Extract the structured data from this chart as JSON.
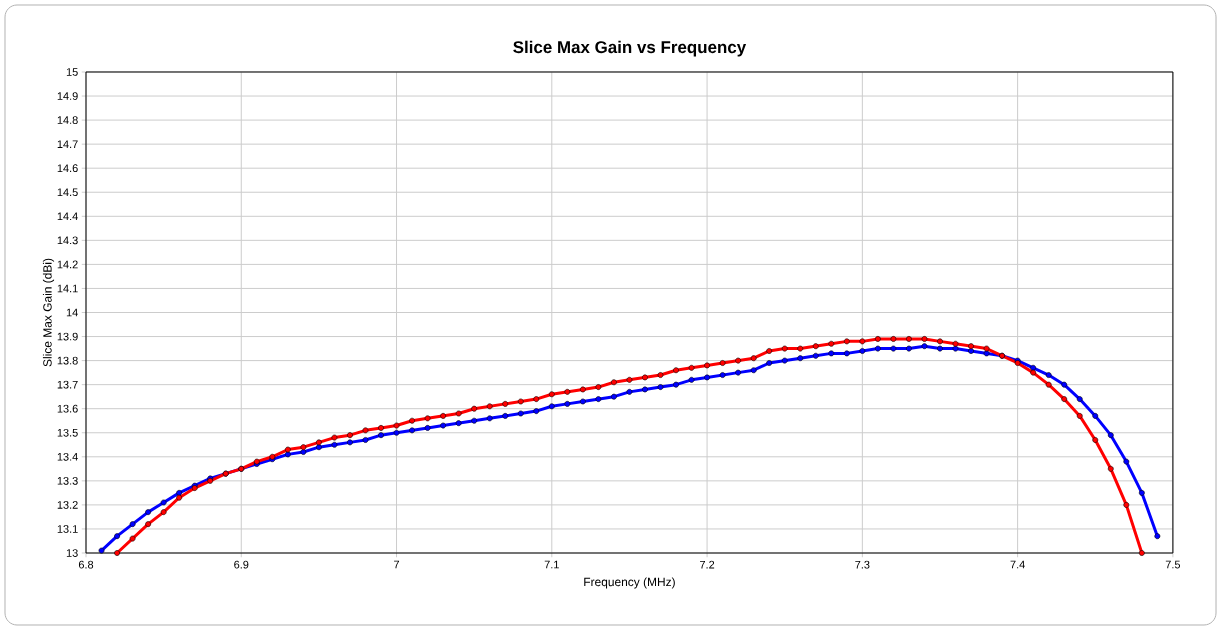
{
  "chart_data": {
    "type": "line",
    "title": "Slice Max Gain  vs  Frequency",
    "xlabel": "Frequency (MHz)",
    "ylabel": "Slice Max Gain (dBi)",
    "xlim": [
      6.8,
      7.5
    ],
    "xticks": [
      6.8,
      6.9,
      7,
      7.1,
      7.2,
      7.3,
      7.4,
      7.5
    ],
    "ylim": [
      13,
      15
    ],
    "yticks": [
      13,
      13.1,
      13.2,
      13.3,
      13.4,
      13.5,
      13.6,
      13.7,
      13.8,
      13.9,
      14,
      14.1,
      14.2,
      14.3,
      14.4,
      14.5,
      14.6,
      14.7,
      14.8,
      14.9,
      15
    ],
    "grid": true,
    "marker": "circle",
    "line_style": "solid",
    "series": [
      {
        "color": "#0000ff",
        "x": [
          6.81,
          6.82,
          6.83,
          6.84,
          6.85,
          6.86,
          6.87,
          6.88,
          6.89,
          6.9,
          6.91,
          6.92,
          6.93,
          6.94,
          6.95,
          6.96,
          6.97,
          6.98,
          6.99,
          7.0,
          7.01,
          7.02,
          7.03,
          7.04,
          7.05,
          7.06,
          7.07,
          7.08,
          7.09,
          7.1,
          7.11,
          7.12,
          7.13,
          7.14,
          7.15,
          7.16,
          7.17,
          7.18,
          7.19,
          7.2,
          7.21,
          7.22,
          7.23,
          7.24,
          7.25,
          7.26,
          7.27,
          7.28,
          7.29,
          7.3,
          7.31,
          7.32,
          7.33,
          7.34,
          7.35,
          7.36,
          7.37,
          7.38,
          7.39,
          7.4,
          7.41,
          7.42,
          7.43,
          7.44,
          7.45,
          7.46,
          7.47,
          7.48,
          7.49
        ],
        "values": [
          13.01,
          13.07,
          13.12,
          13.17,
          13.21,
          13.25,
          13.28,
          13.31,
          13.33,
          13.35,
          13.37,
          13.39,
          13.41,
          13.42,
          13.44,
          13.45,
          13.46,
          13.47,
          13.49,
          13.5,
          13.51,
          13.52,
          13.53,
          13.54,
          13.55,
          13.56,
          13.57,
          13.58,
          13.59,
          13.61,
          13.62,
          13.63,
          13.64,
          13.65,
          13.67,
          13.68,
          13.69,
          13.7,
          13.72,
          13.73,
          13.74,
          13.75,
          13.76,
          13.79,
          13.8,
          13.81,
          13.82,
          13.83,
          13.83,
          13.84,
          13.85,
          13.85,
          13.85,
          13.86,
          13.85,
          13.85,
          13.84,
          13.83,
          13.82,
          13.8,
          13.77,
          13.74,
          13.7,
          13.64,
          13.57,
          13.49,
          13.38,
          13.25,
          13.07
        ]
      },
      {
        "color": "#ff0000",
        "x": [
          6.82,
          6.83,
          6.84,
          6.85,
          6.86,
          6.87,
          6.88,
          6.89,
          6.9,
          6.91,
          6.92,
          6.93,
          6.94,
          6.95,
          6.96,
          6.97,
          6.98,
          6.99,
          7.0,
          7.01,
          7.02,
          7.03,
          7.04,
          7.05,
          7.06,
          7.07,
          7.08,
          7.09,
          7.1,
          7.11,
          7.12,
          7.13,
          7.14,
          7.15,
          7.16,
          7.17,
          7.18,
          7.19,
          7.2,
          7.21,
          7.22,
          7.23,
          7.24,
          7.25,
          7.26,
          7.27,
          7.28,
          7.29,
          7.3,
          7.31,
          7.32,
          7.33,
          7.34,
          7.35,
          7.36,
          7.37,
          7.38,
          7.39,
          7.4,
          7.41,
          7.42,
          7.43,
          7.44,
          7.45,
          7.46,
          7.47,
          7.48
        ],
        "values": [
          13.0,
          13.06,
          13.12,
          13.17,
          13.23,
          13.27,
          13.3,
          13.33,
          13.35,
          13.38,
          13.4,
          13.43,
          13.44,
          13.46,
          13.48,
          13.49,
          13.51,
          13.52,
          13.53,
          13.55,
          13.56,
          13.57,
          13.58,
          13.6,
          13.61,
          13.62,
          13.63,
          13.64,
          13.66,
          13.67,
          13.68,
          13.69,
          13.71,
          13.72,
          13.73,
          13.74,
          13.76,
          13.77,
          13.78,
          13.79,
          13.8,
          13.81,
          13.84,
          13.85,
          13.85,
          13.86,
          13.87,
          13.88,
          13.88,
          13.89,
          13.89,
          13.89,
          13.89,
          13.88,
          13.87,
          13.86,
          13.85,
          13.82,
          13.79,
          13.75,
          13.7,
          13.64,
          13.57,
          13.47,
          13.35,
          13.2,
          13.0
        ]
      }
    ]
  }
}
